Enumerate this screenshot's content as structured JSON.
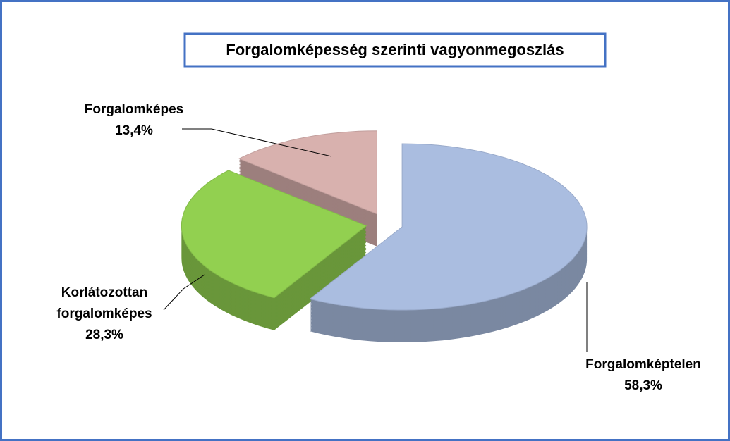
{
  "chart_data": {
    "type": "pie",
    "title": "Forgalomképesség szerinti vagyonmegoszlás",
    "categories": [
      "Forgalomképtelen",
      "Korlátozottan forgalomképes",
      "Forgalomképes"
    ],
    "values": [
      58.3,
      28.3,
      13.4
    ],
    "value_labels": [
      "58,3%",
      "28,3%",
      "13,4%"
    ],
    "colors": [
      "#aabde0",
      "#92d050",
      "#d8b1ae"
    ]
  }
}
